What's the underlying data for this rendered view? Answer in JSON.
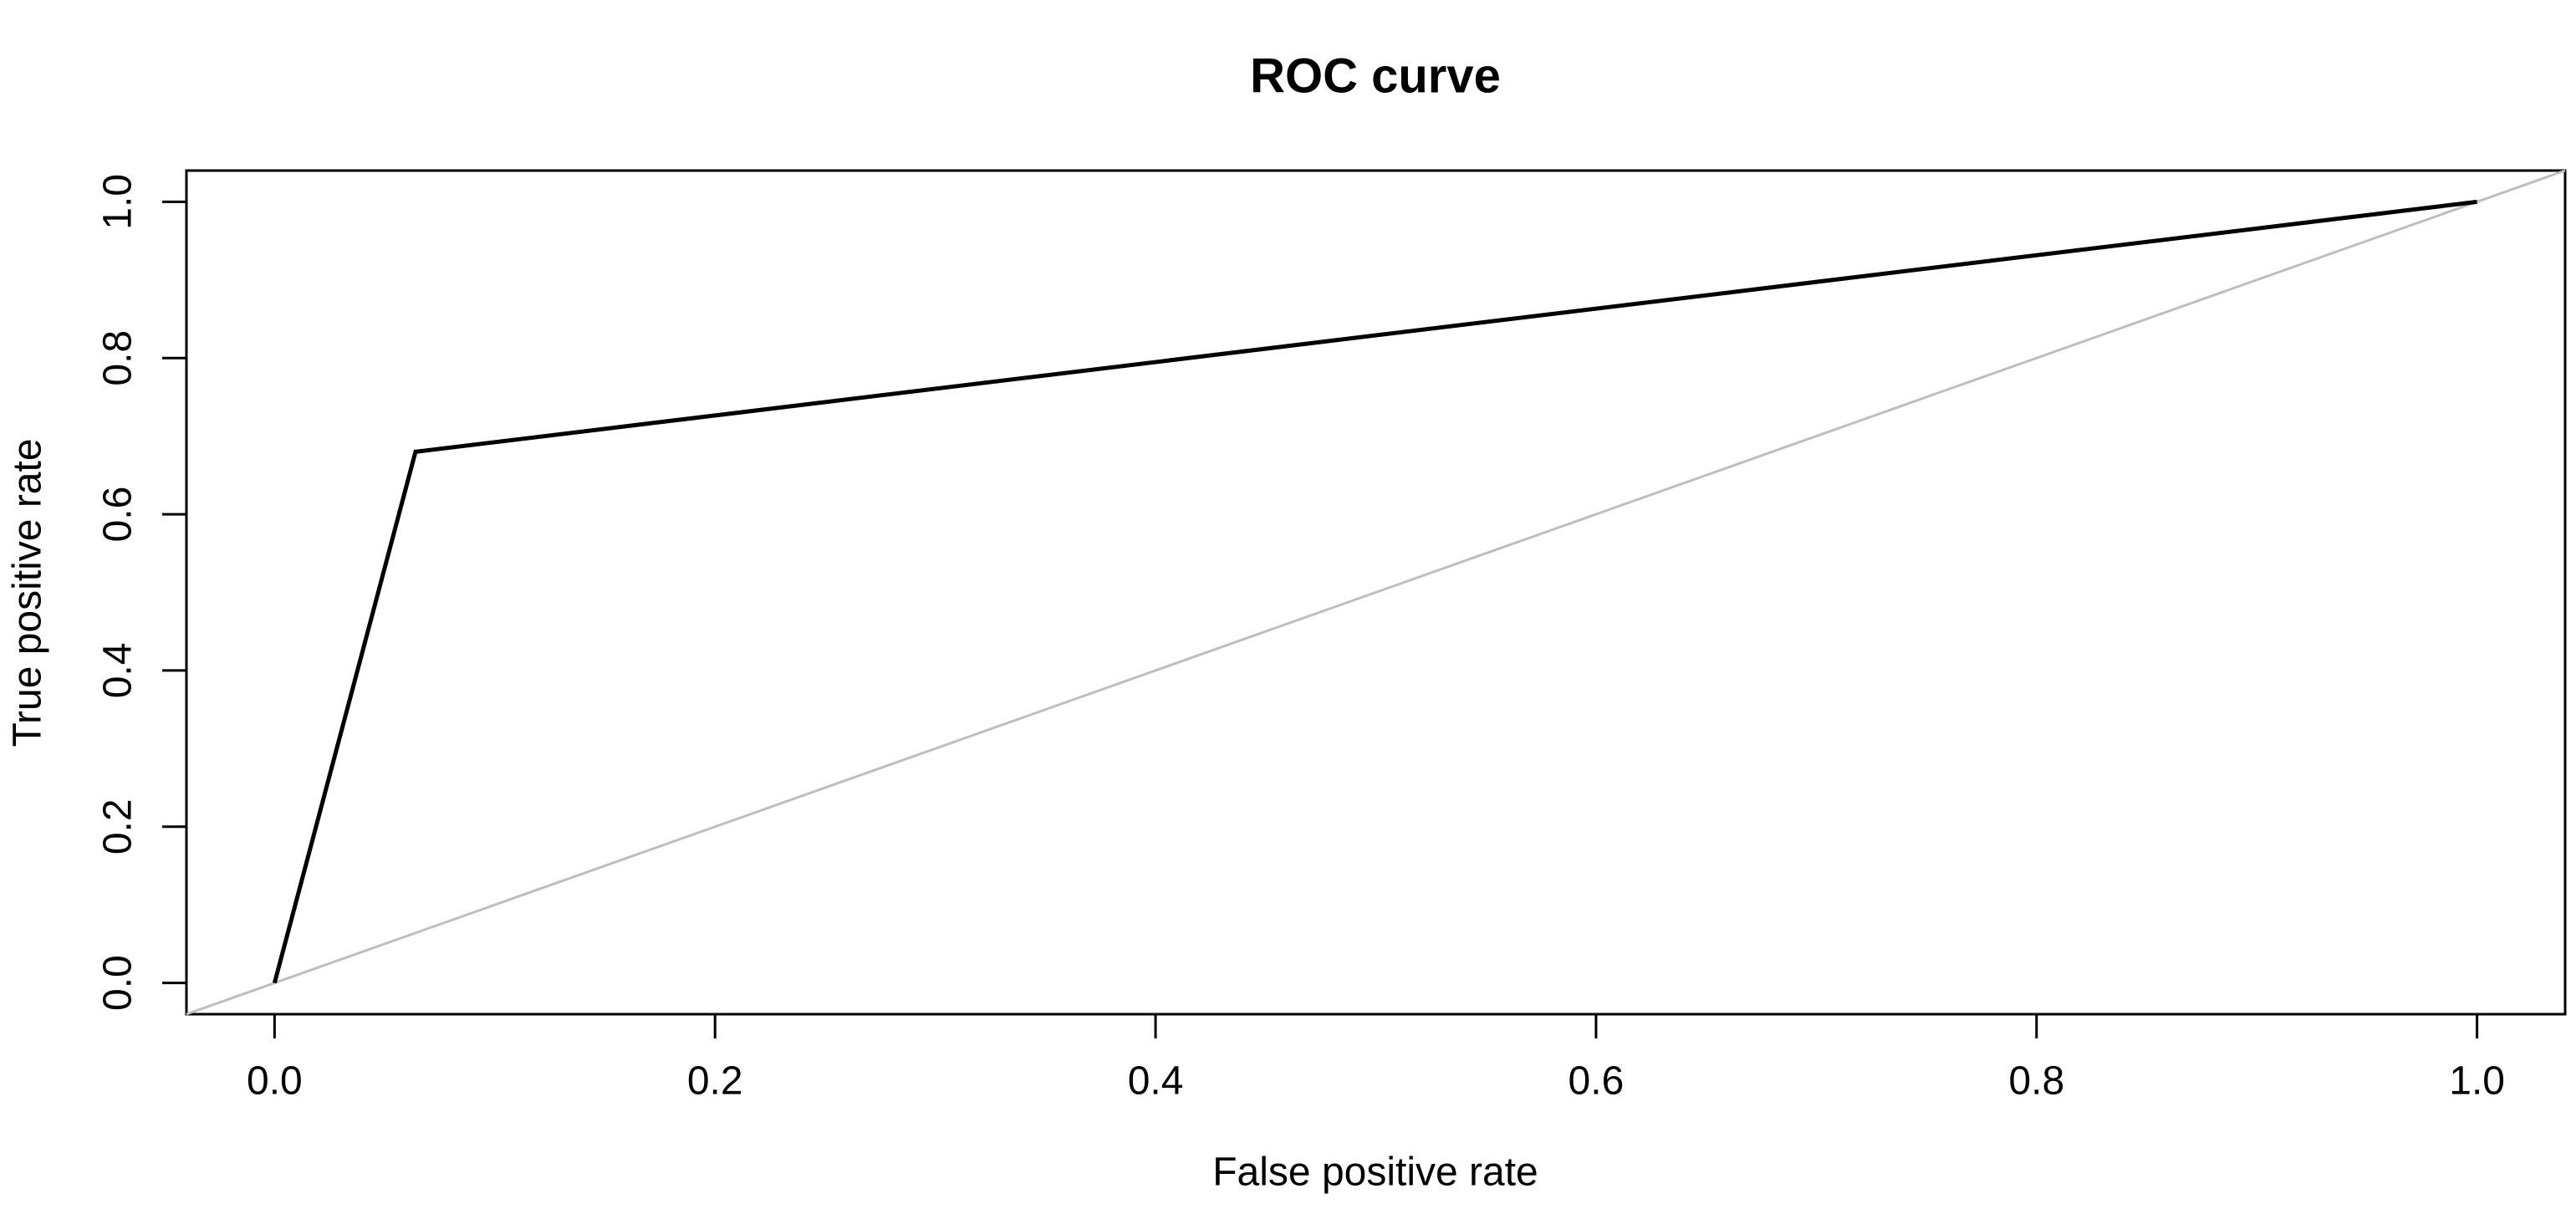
{
  "chart": {
    "title": "ROC curve",
    "xlabel": "False positive rate",
    "ylabel": "True positive rate"
  },
  "chart_data": {
    "type": "line",
    "title": "ROC curve",
    "xlabel": "False positive rate",
    "ylabel": "True positive rate",
    "x_tick_labels": [
      "0.0",
      "0.2",
      "0.4",
      "0.6",
      "0.8",
      "1.0"
    ],
    "y_tick_labels": [
      "0.0",
      "0.2",
      "0.4",
      "0.6",
      "0.8",
      "1.0"
    ],
    "xlim": [
      -0.04,
      1.04
    ],
    "ylim": [
      -0.04,
      1.04
    ],
    "grid": false,
    "legend": "none",
    "background_color": "#ffffff",
    "axis_color": "#000000",
    "series": [
      {
        "name": "diagonal-reference-line",
        "color": "#bebebe",
        "line_width": 3,
        "points": [
          [
            -0.04,
            -0.04
          ],
          [
            1.04,
            1.04
          ]
        ]
      },
      {
        "name": "roc-curve-line",
        "color": "#000000",
        "line_width": 5,
        "points": [
          [
            0.0,
            0.0
          ],
          [
            0.064,
            0.68
          ],
          [
            1.0,
            1.0
          ]
        ]
      }
    ]
  }
}
